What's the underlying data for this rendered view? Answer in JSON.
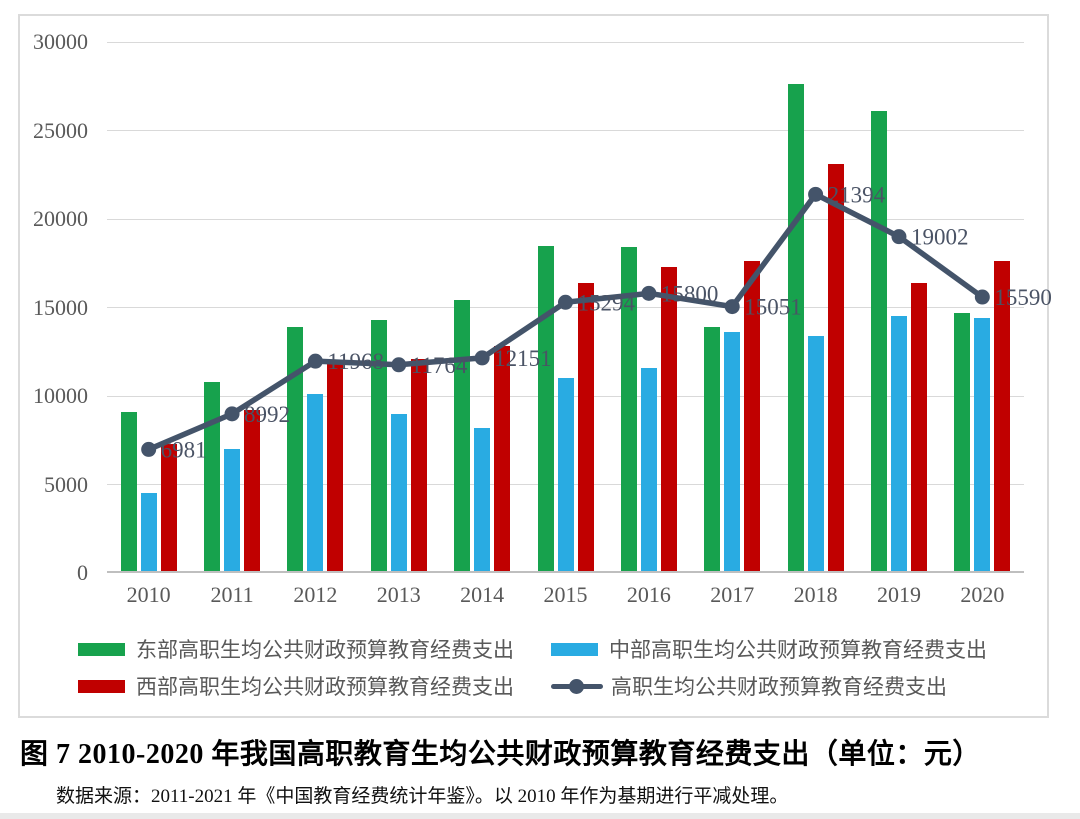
{
  "chart_data": {
    "type": "bar",
    "subtype": "grouped-bars-with-line-overlay",
    "title": "",
    "categories": [
      "2010",
      "2011",
      "2012",
      "2013",
      "2014",
      "2015",
      "2016",
      "2017",
      "2018",
      "2019",
      "2020"
    ],
    "series": [
      {
        "name": "东部高职生均公共财政预算教育经费支出",
        "type": "bar",
        "color": "#17a24d",
        "values": [
          9100,
          10800,
          13900,
          14300,
          15400,
          18500,
          18400,
          13900,
          27600,
          26100,
          14700
        ]
      },
      {
        "name": "中部高职生均公共财政预算教育经费支出",
        "type": "bar",
        "color": "#29abe2",
        "values": [
          4500,
          7000,
          10100,
          9000,
          8200,
          11000,
          11600,
          13600,
          13400,
          14500,
          14400
        ]
      },
      {
        "name": "西部高职生均公共财政预算教育经费支出",
        "type": "bar",
        "color": "#c00000",
        "values": [
          7300,
          9200,
          11900,
          12100,
          12800,
          16400,
          17300,
          17600,
          23100,
          16400,
          17600
        ]
      },
      {
        "name": "高职生均公共财政预算教育经费支出",
        "type": "line",
        "color": "#44546a",
        "data_labels": true,
        "values": [
          6981,
          8992,
          11968,
          11764,
          12151,
          15294,
          15800,
          15051,
          21394,
          19002,
          15590
        ]
      }
    ],
    "ylim": [
      0,
      30000
    ],
    "ytick_step": 5000,
    "yticks": [
      "0",
      "5000",
      "10000",
      "15000",
      "20000",
      "25000",
      "30000"
    ],
    "grid": true,
    "legend_position": "bottom",
    "data_label_color": "#4a5365"
  },
  "caption": {
    "figure_title": "图 7  2010-2020 年我国高职教育生均公共财政预算教育经费支出（单位：元）",
    "source_note": "数据来源：2011-2021 年《中国教育经费统计年鉴》。以 2010 年作为基期进行平减处理。"
  }
}
